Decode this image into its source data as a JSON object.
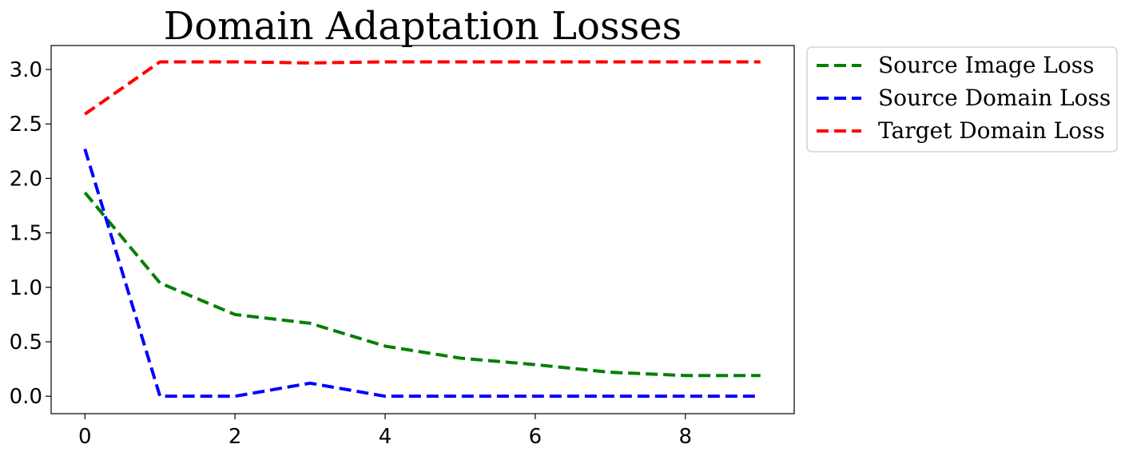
{
  "chart_data": {
    "type": "line",
    "title": "Domain Adaptation Losses",
    "xlabel": "",
    "ylabel": "",
    "x": [
      0,
      1,
      2,
      3,
      4,
      5,
      6,
      7,
      8,
      9
    ],
    "xlim": [
      -0.45,
      9.45
    ],
    "ylim": [
      -0.16,
      3.22
    ],
    "x_ticks": [
      0,
      2,
      4,
      6,
      8
    ],
    "x_tick_labels": [
      "0",
      "2",
      "4",
      "6",
      "8"
    ],
    "y_ticks": [
      0.0,
      0.5,
      1.0,
      1.5,
      2.0,
      2.5,
      3.0
    ],
    "y_tick_labels": [
      "0.0",
      "0.5",
      "1.0",
      "1.5",
      "2.0",
      "2.5",
      "3.0"
    ],
    "grid": false,
    "legend_position": "outside-top-right",
    "series": [
      {
        "name": "Source Image Loss",
        "color": "#008000",
        "line_style": "dashed",
        "values": [
          1.87,
          1.04,
          0.75,
          0.67,
          0.46,
          0.35,
          0.29,
          0.22,
          0.19,
          0.19
        ]
      },
      {
        "name": "Source Domain Loss",
        "color": "#0000ff",
        "line_style": "dashed",
        "values": [
          2.27,
          0.0,
          0.0,
          0.12,
          0.0,
          0.0,
          0.0,
          0.0,
          0.0,
          0.0
        ]
      },
      {
        "name": "Target Domain Loss",
        "color": "#ff0000",
        "line_style": "dashed",
        "values": [
          2.59,
          3.07,
          3.07,
          3.06,
          3.07,
          3.07,
          3.07,
          3.07,
          3.07,
          3.07
        ]
      }
    ]
  }
}
